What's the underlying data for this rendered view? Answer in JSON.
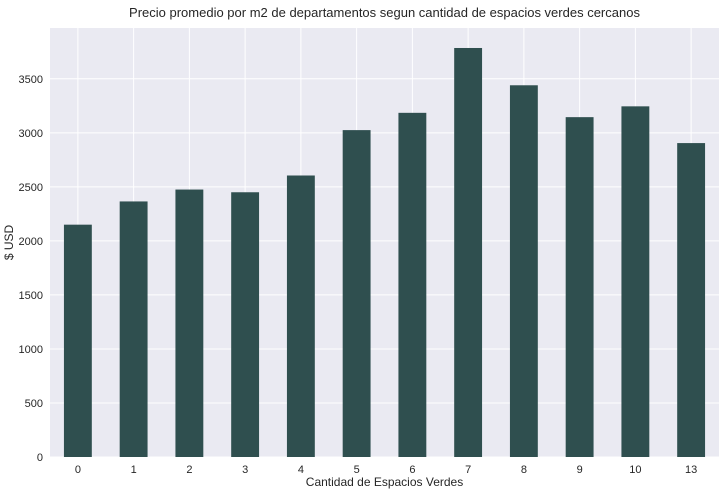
{
  "chart_data": {
    "type": "bar",
    "title": "Precio promedio por m2 de departamentos segun cantidad de espacios verdes cercanos",
    "xlabel": "Cantidad de Espacios Verdes",
    "ylabel": "$ USD",
    "categories": [
      "0",
      "1",
      "2",
      "3",
      "4",
      "5",
      "6",
      "7",
      "8",
      "9",
      "10",
      "13"
    ],
    "values": [
      2150,
      2365,
      2475,
      2450,
      2605,
      3025,
      3185,
      3785,
      3440,
      3145,
      3245,
      2905
    ],
    "ylim": [
      0,
      3970
    ],
    "yticks": [
      0,
      500,
      1000,
      1500,
      2000,
      2500,
      3000,
      3500
    ],
    "grid": true,
    "colors": {
      "bar": "#2f4f4f",
      "plot_background": "#eaeaf2",
      "grid": "#ffffff"
    }
  }
}
